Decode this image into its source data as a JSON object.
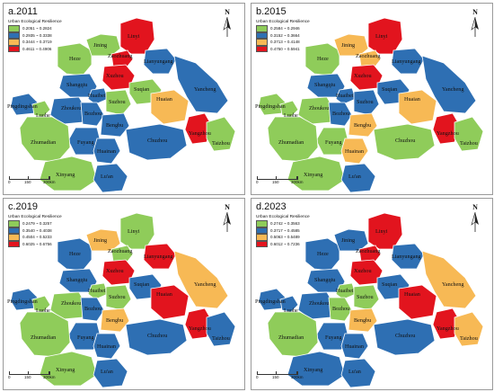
{
  "panels": [
    {
      "title": "a.2011",
      "legend_title": "Urban Ecological Resilience",
      "legend": [
        {
          "label": "0.2051 ~ 0.2824",
          "color": "#8fcc5a"
        },
        {
          "label": "0.2935 ~ 0.3338",
          "color": "#2e6fb3"
        },
        {
          "label": "0.3444 ~ 0.3719",
          "color": "#f7b955"
        },
        {
          "label": "0.4611 ~ 0.4906",
          "color": "#e2141e"
        }
      ],
      "colors": {
        "Heze": 0,
        "Jining": 0,
        "Linyi": 3,
        "Zaozhuang": 3,
        "Lianyungang": 1,
        "Xuzhou": 3,
        "Shangqiu": 1,
        "Huaibei": 1,
        "Suzhou": 0,
        "Suqian": 0,
        "Huaian": 2,
        "Yancheng": 1,
        "Pingdingshan": 1,
        "Luohe": 0,
        "Zhoukou": 1,
        "Bozhou": 1,
        "Bengbu": 1,
        "Yangzhou": 3,
        "Taizhou": 0,
        "Fuyang": 1,
        "Zhumadian": 0,
        "Huainan": 1,
        "Chuzhou": 1,
        "Xinyang": 0,
        "Lu'an": 1
      }
    },
    {
      "title": "b.2015",
      "legend_title": "Urban Ecological Resilience",
      "legend": [
        {
          "label": "0.2584 ~ 0.2946",
          "color": "#8fcc5a"
        },
        {
          "label": "0.3152 ~ 0.3664",
          "color": "#2e6fb3"
        },
        {
          "label": "0.3713 ~ 0.4148",
          "color": "#f7b955"
        },
        {
          "label": "0.4750 ~ 0.5941",
          "color": "#e2141e"
        }
      ],
      "colors": {
        "Heze": 0,
        "Jining": 2,
        "Linyi": 3,
        "Zaozhuang": 2,
        "Lianyungang": 1,
        "Xuzhou": 3,
        "Shangqiu": 1,
        "Huaibei": 1,
        "Suzhou": 1,
        "Suqian": 1,
        "Huaian": 2,
        "Yancheng": 1,
        "Pingdingshan": 0,
        "Luohe": 0,
        "Zhoukou": 0,
        "Bozhou": 1,
        "Bengbu": 2,
        "Yangzhou": 3,
        "Taizhou": 0,
        "Fuyang": 0,
        "Zhumadian": 0,
        "Huainan": 2,
        "Chuzhou": 0,
        "Xinyang": 0,
        "Lu'an": 1
      }
    },
    {
      "title": "c.2019",
      "legend_title": "Urban Ecological Resilience",
      "legend": [
        {
          "label": "0.2479 ~ 0.3257",
          "color": "#8fcc5a"
        },
        {
          "label": "0.3540 ~ 0.4038",
          "color": "#2e6fb3"
        },
        {
          "label": "0.4504 ~ 0.5233",
          "color": "#f7b955"
        },
        {
          "label": "0.6025 ~ 0.6756",
          "color": "#e2141e"
        }
      ],
      "colors": {
        "Heze": 1,
        "Jining": 2,
        "Linyi": 0,
        "Zaozhuang": 0,
        "Lianyungang": 3,
        "Xuzhou": 3,
        "Shangqiu": 1,
        "Huaibei": 0,
        "Suzhou": 0,
        "Suqian": 1,
        "Huaian": 3,
        "Yancheng": 2,
        "Pingdingshan": 1,
        "Luohe": 0,
        "Zhoukou": 0,
        "Bozhou": 1,
        "Bengbu": 2,
        "Yangzhou": 3,
        "Taizhou": 1,
        "Fuyang": 1,
        "Zhumadian": 0,
        "Huainan": 1,
        "Chuzhou": 1,
        "Xinyang": 0,
        "Lu'an": 1
      }
    },
    {
      "title": "d.2023",
      "legend_title": "Urban Ecological Resilience",
      "legend": [
        {
          "label": "0.2742 ~ 0.3563",
          "color": "#8fcc5a"
        },
        {
          "label": "0.3717 ~ 0.4585",
          "color": "#2e6fb3"
        },
        {
          "label": "0.5063 ~ 0.5489",
          "color": "#f7b955"
        },
        {
          "label": "0.6012 ~ 0.7236",
          "color": "#e2141e"
        }
      ],
      "colors": {
        "Heze": 1,
        "Jining": 1,
        "Linyi": 3,
        "Zaozhuang": 3,
        "Lianyungang": 1,
        "Xuzhou": 3,
        "Shangqiu": 1,
        "Huaibei": 0,
        "Suzhou": 0,
        "Suqian": 1,
        "Huaian": 3,
        "Yancheng": 2,
        "Pingdingshan": 1,
        "Luohe": 1,
        "Zhoukou": 1,
        "Bozhou": 0,
        "Bengbu": 2,
        "Yangzhou": 3,
        "Taizhou": 2,
        "Fuyang": 1,
        "Zhumadian": 0,
        "Huainan": 1,
        "Chuzhou": 1,
        "Xinyang": 1,
        "Lu'an": 1
      }
    }
  ],
  "cities": [
    {
      "id": "Heze",
      "label": "Heze"
    },
    {
      "id": "Jining",
      "label": "Jining"
    },
    {
      "id": "Linyi",
      "label": "Linyi"
    },
    {
      "id": "Zaozhuang",
      "label": "Zaozhuang"
    },
    {
      "id": "Lianyungang",
      "label": "Lianyungang"
    },
    {
      "id": "Xuzhou",
      "label": "Xuzhou"
    },
    {
      "id": "Shangqiu",
      "label": "Shangqiu"
    },
    {
      "id": "Huaibei",
      "label": "Huaibei"
    },
    {
      "id": "Suzhou",
      "label": "Suzhou"
    },
    {
      "id": "Suqian",
      "label": "Suqian"
    },
    {
      "id": "Huaian",
      "label": "Huaian"
    },
    {
      "id": "Yancheng",
      "label": "Yancheng"
    },
    {
      "id": "Pingdingshan",
      "label": "Pingdingshan"
    },
    {
      "id": "Luohe",
      "label": "Luohe"
    },
    {
      "id": "Zhoukou",
      "label": "Zhoukou"
    },
    {
      "id": "Bozhou",
      "label": "Bozhou"
    },
    {
      "id": "Bengbu",
      "label": "Bengbu"
    },
    {
      "id": "Yangzhou",
      "label": "Yangzhou"
    },
    {
      "id": "Taizhou",
      "label": "Taizhou"
    },
    {
      "id": "Fuyang",
      "label": "Fuyang"
    },
    {
      "id": "Zhumadian",
      "label": "Zhumadian"
    },
    {
      "id": "Huainan",
      "label": "Huainan"
    },
    {
      "id": "Chuzhou",
      "label": "Chuzhou"
    },
    {
      "id": "Xinyang",
      "label": "Xinyang"
    },
    {
      "id": "Lu'an",
      "label": "Lu'an"
    }
  ],
  "north_label": "N",
  "scale": {
    "ticks": [
      "0",
      "150",
      "300km"
    ]
  }
}
